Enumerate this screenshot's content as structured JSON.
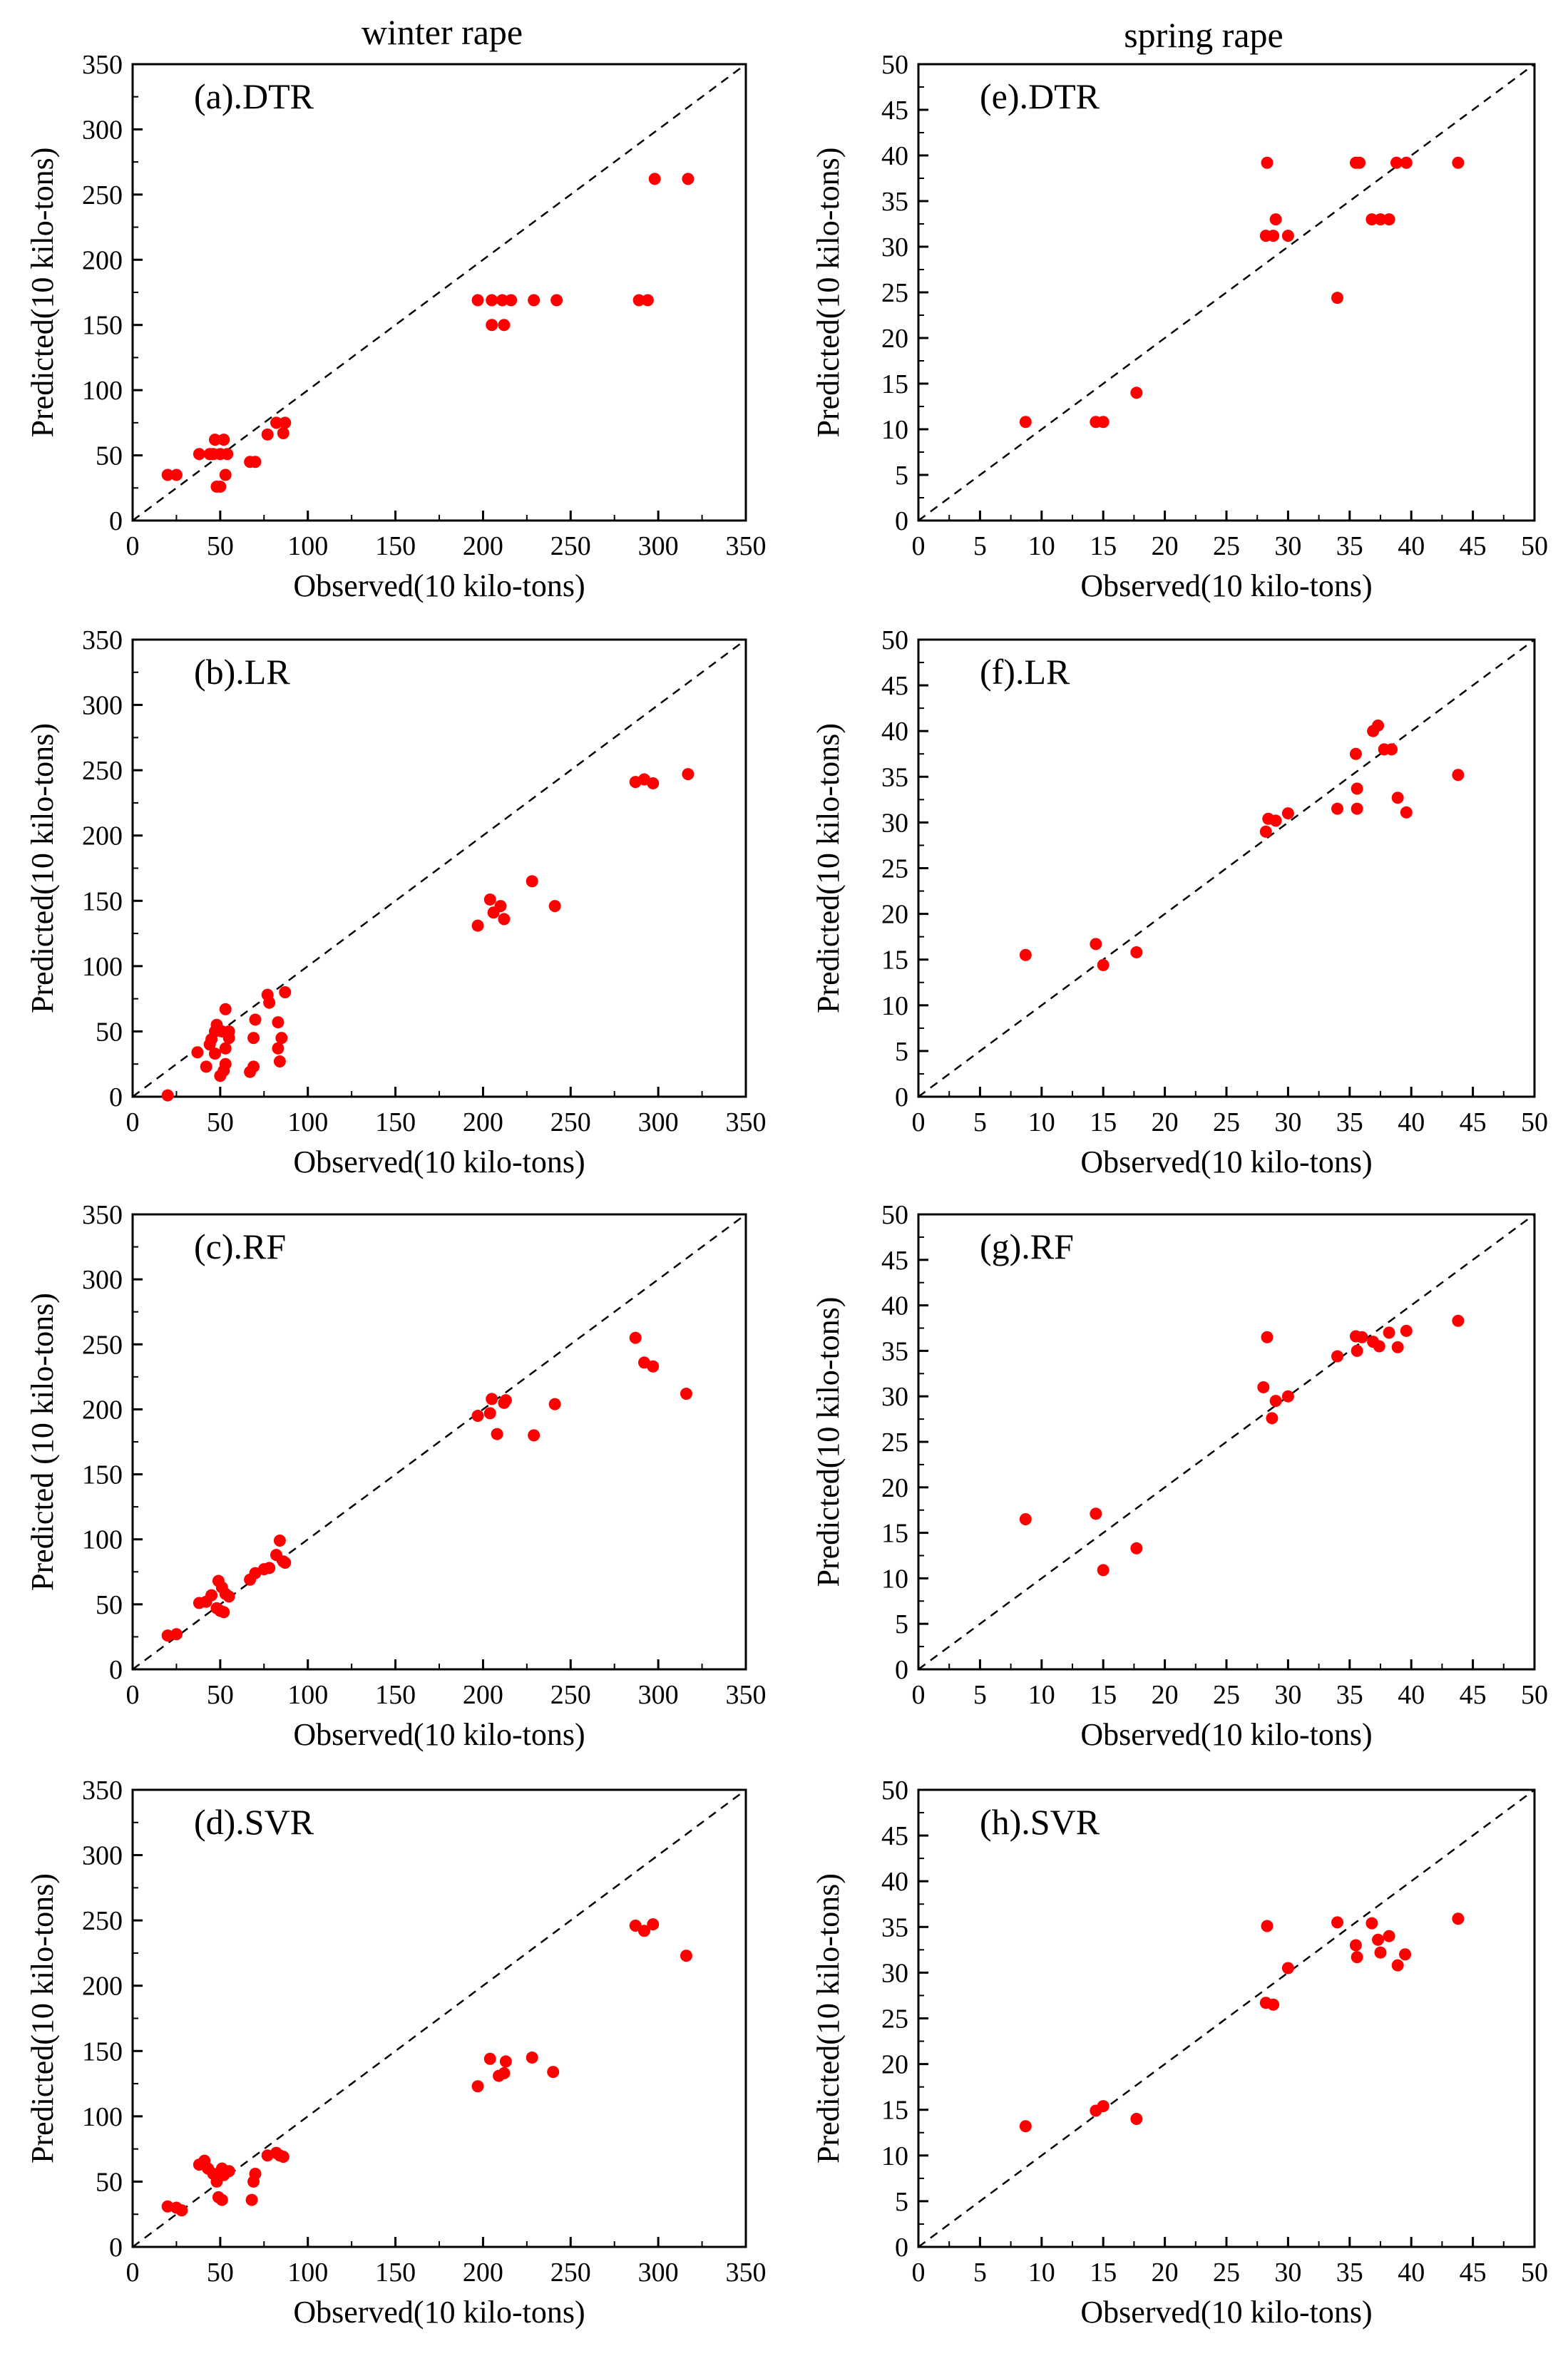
{
  "column_titles": [
    "winter rape",
    "spring rape"
  ],
  "colors": {
    "point": "#ff0000",
    "diagonal": "#000000",
    "frame": "#000000"
  },
  "chart_data": [
    {
      "type": "scatter",
      "title": "(a).DTR",
      "column": "winter rape",
      "xlabel": "Observed(10 kilo-tons)",
      "ylabel": "Predicted(10 kilo-tons)",
      "xlim": [
        0,
        350
      ],
      "ylim": [
        0,
        350
      ],
      "xticks": [
        "0",
        "50",
        "100",
        "150",
        "200",
        "250",
        "300",
        "350"
      ],
      "yticks": [
        "0",
        "50",
        "100",
        "150",
        "200",
        "250",
        "300",
        "350"
      ],
      "reference_line": "y = x (dashed)",
      "points": [
        [
          20,
          35
        ],
        [
          25,
          35
        ],
        [
          38,
          51
        ],
        [
          44,
          51
        ],
        [
          47,
          62
        ],
        [
          52,
          62
        ],
        [
          46,
          51
        ],
        [
          50,
          51
        ],
        [
          54,
          51
        ],
        [
          48,
          26
        ],
        [
          50,
          26
        ],
        [
          53,
          35
        ],
        [
          67,
          45
        ],
        [
          70,
          45
        ],
        [
          77,
          66
        ],
        [
          82,
          75
        ],
        [
          87,
          75
        ],
        [
          86,
          67
        ],
        [
          197,
          169
        ],
        [
          205,
          169
        ],
        [
          211,
          169
        ],
        [
          216,
          169
        ],
        [
          229,
          169
        ],
        [
          242,
          169
        ],
        [
          205,
          150
        ],
        [
          212,
          150
        ],
        [
          289,
          169
        ],
        [
          294,
          169
        ],
        [
          298,
          262
        ],
        [
          317,
          262
        ]
      ]
    },
    {
      "type": "scatter",
      "title": "(e).DTR",
      "column": "spring rape",
      "xlabel": "Observed(10 kilo-tons)",
      "ylabel": "Predicted(10 kilo-tons)",
      "xlim": [
        0,
        50
      ],
      "ylim": [
        0,
        50
      ],
      "xticks": [
        "0",
        "5",
        "10",
        "15",
        "20",
        "25",
        "30",
        "35",
        "40",
        "45",
        "50"
      ],
      "yticks": [
        "0",
        "5",
        "10",
        "15",
        "20",
        "25",
        "30",
        "35",
        "40",
        "45",
        "50"
      ],
      "reference_line": "y = x (dashed)",
      "points": [
        [
          8.7,
          10.8
        ],
        [
          14.4,
          10.8
        ],
        [
          15.0,
          10.8
        ],
        [
          17.7,
          14.0
        ],
        [
          28.3,
          39.2
        ],
        [
          28.2,
          31.2
        ],
        [
          28.8,
          31.2
        ],
        [
          29.0,
          33.0
        ],
        [
          30.0,
          31.2
        ],
        [
          34.0,
          24.4
        ],
        [
          35.5,
          39.2
        ],
        [
          35.8,
          39.2
        ],
        [
          36.8,
          33.0
        ],
        [
          37.5,
          33.0
        ],
        [
          38.2,
          33.0
        ],
        [
          38.8,
          39.2
        ],
        [
          39.6,
          39.2
        ],
        [
          43.8,
          39.2
        ]
      ]
    },
    {
      "type": "scatter",
      "title": "(b).LR",
      "column": "winter rape",
      "xlabel": "Observed(10 kilo-tons)",
      "ylabel": "Predicted(10 kilo-tons)",
      "xlim": [
        0,
        350
      ],
      "ylim": [
        0,
        350
      ],
      "xticks": [
        "0",
        "50",
        "100",
        "150",
        "200",
        "250",
        "300",
        "350"
      ],
      "yticks": [
        "0",
        "50",
        "100",
        "150",
        "200",
        "250",
        "300",
        "350"
      ],
      "reference_line": "y = x (dashed)",
      "points": [
        [
          20,
          1
        ],
        [
          37,
          34
        ],
        [
          42,
          23
        ],
        [
          45,
          44
        ],
        [
          48,
          55
        ],
        [
          44,
          40
        ],
        [
          47,
          33
        ],
        [
          50,
          16
        ],
        [
          52,
          20
        ],
        [
          51,
          50
        ],
        [
          53,
          67
        ],
        [
          55,
          45
        ],
        [
          53,
          37
        ],
        [
          55,
          50
        ],
        [
          53,
          25
        ],
        [
          47,
          50
        ],
        [
          69,
          23
        ],
        [
          69,
          45
        ],
        [
          70,
          59
        ],
        [
          67,
          19
        ],
        [
          77,
          78
        ],
        [
          78,
          72
        ],
        [
          83,
          57
        ],
        [
          85,
          45
        ],
        [
          87,
          80
        ],
        [
          83,
          37
        ],
        [
          84,
          27
        ],
        [
          197,
          131
        ],
        [
          204,
          151
        ],
        [
          206,
          141
        ],
        [
          210,
          146
        ],
        [
          212,
          136
        ],
        [
          228,
          165
        ],
        [
          241,
          146
        ],
        [
          287,
          241
        ],
        [
          292,
          243
        ],
        [
          297,
          240
        ],
        [
          317,
          247
        ]
      ]
    },
    {
      "type": "scatter",
      "title": "(f).LR",
      "column": "spring rape",
      "xlabel": "Observed(10 kilo-tons)",
      "ylabel": "Predicted(10 kilo-tons)",
      "xlim": [
        0,
        50
      ],
      "ylim": [
        0,
        50
      ],
      "xticks": [
        "0",
        "5",
        "10",
        "15",
        "20",
        "25",
        "30",
        "35",
        "40",
        "45",
        "50"
      ],
      "yticks": [
        "0",
        "5",
        "10",
        "15",
        "20",
        "25",
        "30",
        "35",
        "40",
        "45",
        "50"
      ],
      "reference_line": "y = x (dashed)",
      "points": [
        [
          8.7,
          15.5
        ],
        [
          14.4,
          16.7
        ],
        [
          15.0,
          14.4
        ],
        [
          17.7,
          15.8
        ],
        [
          28.2,
          29.0
        ],
        [
          28.4,
          30.4
        ],
        [
          29.0,
          30.2
        ],
        [
          30.0,
          31.0
        ],
        [
          34.0,
          31.5
        ],
        [
          35.5,
          37.5
        ],
        [
          35.6,
          33.7
        ],
        [
          35.6,
          31.5
        ],
        [
          36.9,
          40.0
        ],
        [
          37.3,
          40.6
        ],
        [
          37.8,
          38.0
        ],
        [
          38.4,
          38.0
        ],
        [
          38.9,
          32.7
        ],
        [
          39.6,
          31.1
        ],
        [
          43.8,
          35.2
        ]
      ]
    },
    {
      "type": "scatter",
      "title": "(c).RF",
      "column": "winter rape",
      "xlabel": "Observed(10 kilo-tons)",
      "ylabel": "Predicted (10 kilo-tons)",
      "xlim": [
        0,
        350
      ],
      "ylim": [
        0,
        350
      ],
      "xticks": [
        "0",
        "50",
        "100",
        "150",
        "200",
        "250",
        "300",
        "350"
      ],
      "yticks": [
        "0",
        "50",
        "100",
        "150",
        "200",
        "250",
        "300",
        "350"
      ],
      "reference_line": "y = x (dashed)",
      "points": [
        [
          20,
          26
        ],
        [
          25,
          27
        ],
        [
          38,
          51
        ],
        [
          42,
          52
        ],
        [
          45,
          57
        ],
        [
          48,
          47
        ],
        [
          49,
          68
        ],
        [
          50,
          45
        ],
        [
          52,
          44
        ],
        [
          51,
          63
        ],
        [
          53,
          58
        ],
        [
          55,
          56
        ],
        [
          67,
          69
        ],
        [
          70,
          74
        ],
        [
          75,
          77
        ],
        [
          78,
          78
        ],
        [
          82,
          88
        ],
        [
          84,
          99
        ],
        [
          86,
          83
        ],
        [
          87,
          82
        ],
        [
          197,
          195
        ],
        [
          204,
          197
        ],
        [
          205,
          208
        ],
        [
          208,
          181
        ],
        [
          212,
          205
        ],
        [
          213,
          207
        ],
        [
          229,
          180
        ],
        [
          241,
          204
        ],
        [
          287,
          255
        ],
        [
          292,
          236
        ],
        [
          297,
          233
        ],
        [
          316,
          212
        ]
      ]
    },
    {
      "type": "scatter",
      "title": "(g).RF",
      "column": "spring rape",
      "xlabel": "Observed(10 kilo-tons)",
      "ylabel": "Predicted(10 kilo-tons)",
      "xlim": [
        0,
        50
      ],
      "ylim": [
        0,
        50
      ],
      "xticks": [
        "0",
        "5",
        "10",
        "15",
        "20",
        "25",
        "30",
        "35",
        "40",
        "45",
        "50"
      ],
      "yticks": [
        "0",
        "5",
        "10",
        "15",
        "20",
        "25",
        "30",
        "35",
        "40",
        "45",
        "50"
      ],
      "reference_line": "y = x (dashed)",
      "points": [
        [
          8.7,
          16.5
        ],
        [
          14.4,
          17.1
        ],
        [
          15.0,
          10.9
        ],
        [
          17.7,
          13.3
        ],
        [
          28.3,
          36.5
        ],
        [
          28.0,
          31.0
        ],
        [
          28.7,
          27.6
        ],
        [
          29.0,
          29.5
        ],
        [
          30.0,
          30.0
        ],
        [
          34.0,
          34.4
        ],
        [
          35.5,
          36.6
        ],
        [
          35.6,
          35.0
        ],
        [
          36.0,
          36.5
        ],
        [
          36.9,
          36.0
        ],
        [
          37.4,
          35.5
        ],
        [
          38.2,
          37.0
        ],
        [
          38.9,
          35.4
        ],
        [
          39.6,
          37.2
        ],
        [
          43.8,
          38.3
        ]
      ]
    },
    {
      "type": "scatter",
      "title": "(d).SVR",
      "column": "winter rape",
      "xlabel": "Observed(10 kilo-tons)",
      "ylabel": "Predicted(10 kilo-tons)",
      "xlim": [
        0,
        350
      ],
      "ylim": [
        0,
        350
      ],
      "xticks": [
        "0",
        "50",
        "100",
        "150",
        "200",
        "250",
        "300",
        "350"
      ],
      "yticks": [
        "0",
        "50",
        "100",
        "150",
        "200",
        "250",
        "300",
        "350"
      ],
      "reference_line": "y = x (dashed)",
      "points": [
        [
          20,
          31
        ],
        [
          25,
          30
        ],
        [
          28,
          28
        ],
        [
          38,
          63
        ],
        [
          41,
          66
        ],
        [
          43,
          60
        ],
        [
          46,
          56
        ],
        [
          48,
          50
        ],
        [
          49,
          38
        ],
        [
          51,
          36
        ],
        [
          52,
          55
        ],
        [
          53,
          58
        ],
        [
          55,
          58
        ],
        [
          51,
          60
        ],
        [
          68,
          36
        ],
        [
          69,
          50
        ],
        [
          70,
          56
        ],
        [
          77,
          70
        ],
        [
          82,
          72
        ],
        [
          84,
          70
        ],
        [
          86,
          69
        ],
        [
          197,
          123
        ],
        [
          204,
          144
        ],
        [
          209,
          131
        ],
        [
          212,
          133
        ],
        [
          213,
          142
        ],
        [
          228,
          145
        ],
        [
          240,
          134
        ],
        [
          287,
          246
        ],
        [
          292,
          242
        ],
        [
          297,
          247
        ],
        [
          316,
          223
        ]
      ]
    },
    {
      "type": "scatter",
      "title": "(h).SVR",
      "column": "spring rape",
      "xlabel": "Observed(10 kilo-tons)",
      "ylabel": "Predicted(10 kilo-tons)",
      "xlim": [
        0,
        50
      ],
      "ylim": [
        0,
        50
      ],
      "xticks": [
        "0",
        "5",
        "10",
        "15",
        "20",
        "25",
        "30",
        "35",
        "40",
        "45",
        "50"
      ],
      "yticks": [
        "0",
        "5",
        "10",
        "15",
        "20",
        "25",
        "30",
        "35",
        "40",
        "45",
        "50"
      ],
      "reference_line": "y = x (dashed)",
      "points": [
        [
          8.7,
          13.2
        ],
        [
          14.4,
          14.9
        ],
        [
          15.0,
          15.4
        ],
        [
          17.7,
          14.0
        ],
        [
          28.3,
          35.1
        ],
        [
          28.2,
          26.7
        ],
        [
          28.8,
          26.5
        ],
        [
          30.0,
          30.5
        ],
        [
          34.0,
          35.5
        ],
        [
          35.5,
          33.0
        ],
        [
          35.6,
          31.7
        ],
        [
          36.8,
          35.4
        ],
        [
          37.3,
          33.6
        ],
        [
          37.5,
          32.2
        ],
        [
          38.2,
          34.0
        ],
        [
          38.9,
          30.8
        ],
        [
          39.5,
          32.0
        ],
        [
          43.8,
          35.9
        ]
      ]
    }
  ]
}
